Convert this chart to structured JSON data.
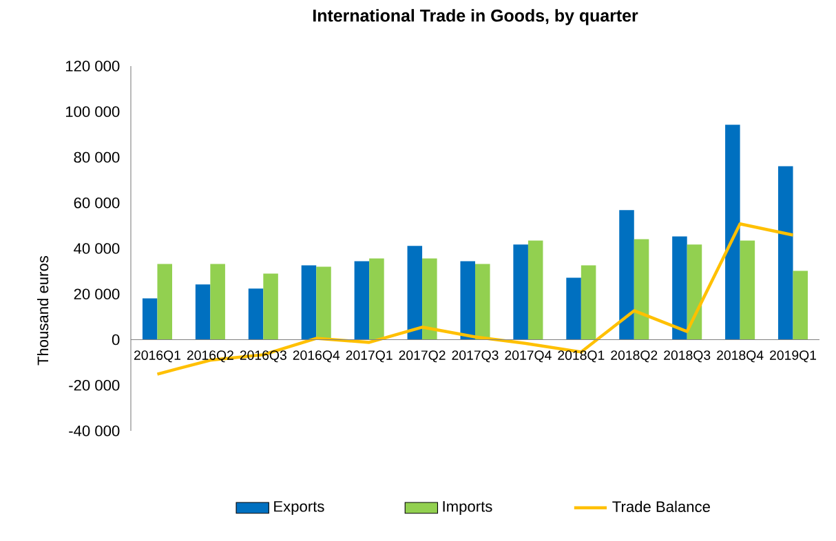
{
  "chart_data": {
    "type": "bar",
    "title": "International Trade in Goods,  by quarter",
    "ylabel": "Thousand euros",
    "categories": [
      "2016Q1",
      "2016Q2",
      "2016Q3",
      "2016Q4",
      "2017Q1",
      "2017Q2",
      "2017Q3",
      "2017Q4",
      "2018Q1",
      "2018Q2",
      "2018Q3",
      "2018Q4",
      "2019Q1"
    ],
    "series": [
      {
        "name": "Exports",
        "color": "#0070c0",
        "values": [
          18100,
          24200,
          22400,
          32600,
          34400,
          41100,
          34400,
          41700,
          27200,
          56800,
          45300,
          94300,
          76100
        ]
      },
      {
        "name": "Imports",
        "color": "#92d050",
        "values": [
          33200,
          33200,
          29000,
          32000,
          35600,
          35600,
          33200,
          43500,
          32600,
          44100,
          41700,
          43500,
          30200
        ]
      },
      {
        "name": "Trade Balance",
        "type": "line",
        "color": "#ffc000",
        "values": [
          -15100,
          -9000,
          -6600,
          600,
          -1200,
          5500,
          1200,
          -1800,
          -5400,
          12700,
          3600,
          50800,
          45900
        ]
      }
    ],
    "ylim": [
      -40000,
      120000
    ],
    "yticks": [
      {
        "value": -40000,
        "label": "-40 000"
      },
      {
        "value": -20000,
        "label": "-20 000"
      },
      {
        "value": 0,
        "label": "0"
      },
      {
        "value": 20000,
        "label": "20 000"
      },
      {
        "value": 40000,
        "label": "40 000"
      },
      {
        "value": 60000,
        "label": "60 000"
      },
      {
        "value": 80000,
        "label": "80 000"
      },
      {
        "value": 100000,
        "label": "100 000"
      },
      {
        "value": 120000,
        "label": "120 000"
      }
    ],
    "grid": false,
    "legend": "bottom",
    "marker": "none"
  }
}
